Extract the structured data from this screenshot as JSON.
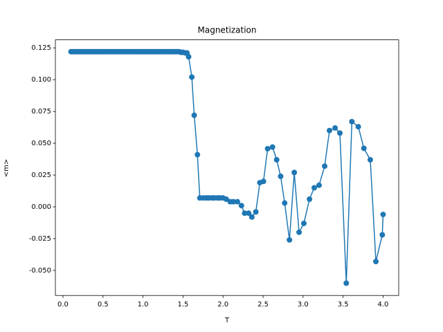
{
  "chart_data": {
    "type": "line",
    "title": "Magnetization",
    "x_label": "T",
    "y_label": "<m>",
    "series": [
      {
        "color": "#1f77b4",
        "x": [
          0.1,
          0.125,
          0.15,
          0.175,
          0.2,
          0.225,
          0.25,
          0.275,
          0.3,
          0.325,
          0.35,
          0.375,
          0.4,
          0.425,
          0.45,
          0.475,
          0.5,
          0.525,
          0.55,
          0.575,
          0.6,
          0.625,
          0.65,
          0.675,
          0.7,
          0.725,
          0.75,
          0.775,
          0.8,
          0.825,
          0.85,
          0.875,
          0.9,
          0.925,
          0.95,
          0.975,
          1.0,
          1.025,
          1.05,
          1.075,
          1.1,
          1.125,
          1.15,
          1.175,
          1.2,
          1.225,
          1.25,
          1.275,
          1.3,
          1.325,
          1.35,
          1.375,
          1.4,
          1.425,
          1.45,
          1.475,
          1.5,
          1.53,
          1.55,
          1.57,
          1.61,
          1.64,
          1.68,
          1.71,
          1.75,
          1.79,
          1.82,
          1.86,
          1.89,
          1.93,
          1.96,
          2.0,
          2.04,
          2.09,
          2.13,
          2.18,
          2.23,
          2.27,
          2.32,
          2.36,
          2.41,
          2.46,
          2.505,
          2.557,
          2.618,
          2.67,
          2.72,
          2.77,
          2.83,
          2.89,
          2.95,
          3.01,
          3.08,
          3.14,
          3.2,
          3.27,
          3.33,
          3.4,
          3.46,
          3.54,
          3.61,
          3.69,
          3.76,
          3.84,
          3.91,
          3.99,
          4.0
        ],
        "values": [
          0.122,
          0.122,
          0.122,
          0.122,
          0.122,
          0.122,
          0.122,
          0.122,
          0.122,
          0.122,
          0.122,
          0.122,
          0.122,
          0.122,
          0.122,
          0.122,
          0.122,
          0.122,
          0.122,
          0.122,
          0.122,
          0.122,
          0.122,
          0.122,
          0.122,
          0.122,
          0.122,
          0.122,
          0.122,
          0.122,
          0.122,
          0.122,
          0.122,
          0.122,
          0.122,
          0.122,
          0.122,
          0.122,
          0.122,
          0.122,
          0.122,
          0.122,
          0.122,
          0.122,
          0.122,
          0.122,
          0.122,
          0.122,
          0.122,
          0.122,
          0.122,
          0.122,
          0.122,
          0.122,
          0.122,
          0.1215,
          0.1215,
          0.121,
          0.121,
          0.118,
          0.102,
          0.072,
          0.041,
          0.007,
          0.007,
          0.007,
          0.007,
          0.007,
          0.007,
          0.007,
          0.007,
          0.007,
          0.006,
          0.004,
          0.004,
          0.004,
          0.001,
          -0.005,
          -0.005,
          -0.008,
          -0.004,
          0.019,
          0.02,
          0.0457,
          0.047,
          0.037,
          0.024,
          0.003,
          -0.026,
          0.027,
          -0.02,
          -0.013,
          0.006,
          0.015,
          0.017,
          0.032,
          0.06,
          0.062,
          0.058,
          -0.06,
          0.067,
          0.063,
          0.046,
          0.037,
          -0.043,
          -0.022,
          -0.006
        ]
      }
    ],
    "xlim": [
      -0.095,
      4.195
    ],
    "xticks": [
      {
        "value": 0,
        "label": "0.0"
      },
      0.5,
      {
        "value": 1,
        "label": "1.0"
      },
      1.5,
      {
        "value": 2,
        "label": "2.0"
      },
      2.5,
      {
        "value": 3,
        "label": "3.0"
      },
      3.5,
      {
        "value": 4,
        "label": "4.0"
      }
    ],
    "ylim": [
      -0.0697,
      0.1313
    ],
    "yticks": [
      {
        "value": -0.05,
        "label": "-0.050"
      },
      -0.025,
      {
        "value": 0,
        "label": "0.000"
      },
      0.025,
      {
        "value": 0.05,
        "label": "0.050"
      },
      0.075,
      {
        "value": 0.1,
        "label": "0.100"
      },
      0.125
    ],
    "grid": false
  }
}
